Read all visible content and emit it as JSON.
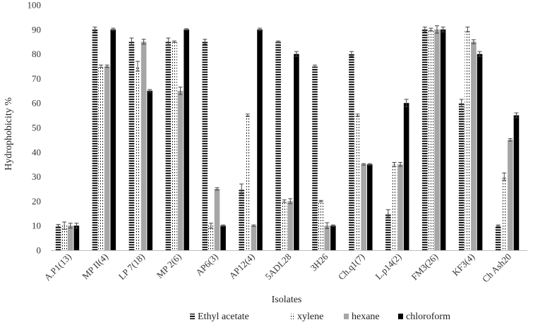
{
  "chart_data": {
    "type": "bar",
    "title": "",
    "xlabel": "Isolates",
    "ylabel": "Hydrophobicity %",
    "ylim": [
      0,
      100
    ],
    "yticks": [
      0,
      10,
      20,
      30,
      40,
      50,
      60,
      70,
      80,
      90,
      100
    ],
    "grid": false,
    "legend_position": "bottom",
    "categories": [
      "A.P1(13)",
      "MP II(4)",
      "LP 7(18)",
      "MP 2(6)",
      "AP6(3)",
      "AP12(4)",
      "5ADL28",
      "3H26",
      "Ch.q1(7)",
      "L.p14(2)",
      "FM3(26)",
      "KF3(4)",
      "Ch Ash20"
    ],
    "series": [
      {
        "name": "Ethyl acetate",
        "pattern": "dashed-horizontal",
        "color": "#000000",
        "values": [
          10,
          90,
          85,
          85,
          85,
          25,
          85,
          75,
          80,
          15,
          90,
          60,
          10
        ],
        "errors": [
          0.5,
          1,
          1.5,
          1.5,
          1,
          2,
          0,
          0.5,
          1,
          1.5,
          1,
          1.5,
          0
        ]
      },
      {
        "name": "xylene",
        "pattern": "dotted-vertical",
        "color": "#000000",
        "values": [
          10,
          75,
          75,
          85,
          10,
          55,
          20,
          20,
          55,
          35,
          90,
          90,
          30
        ],
        "errors": [
          1.5,
          0.5,
          2,
          0,
          1,
          0.5,
          0.5,
          0.3,
          0.5,
          0.8,
          0.5,
          1,
          1.5
        ]
      },
      {
        "name": "hexane",
        "pattern": "solid",
        "color": "#a6a6a6",
        "values": [
          10,
          75,
          85,
          65,
          25,
          10,
          20,
          10,
          35,
          35,
          90,
          85,
          45
        ],
        "errors": [
          1,
          0.5,
          1,
          1.5,
          0.5,
          0,
          1,
          1.2,
          0,
          0.8,
          1.5,
          0.8,
          0.5
        ]
      },
      {
        "name": "chloroform",
        "pattern": "solid",
        "color": "#000000",
        "values": [
          10,
          90,
          65,
          90,
          10,
          90,
          80,
          10,
          35,
          60,
          90,
          80,
          55
        ],
        "errors": [
          1,
          0.5,
          0.5,
          0,
          0,
          0.5,
          1,
          0.3,
          0,
          1.5,
          1,
          1,
          1
        ]
      }
    ]
  }
}
